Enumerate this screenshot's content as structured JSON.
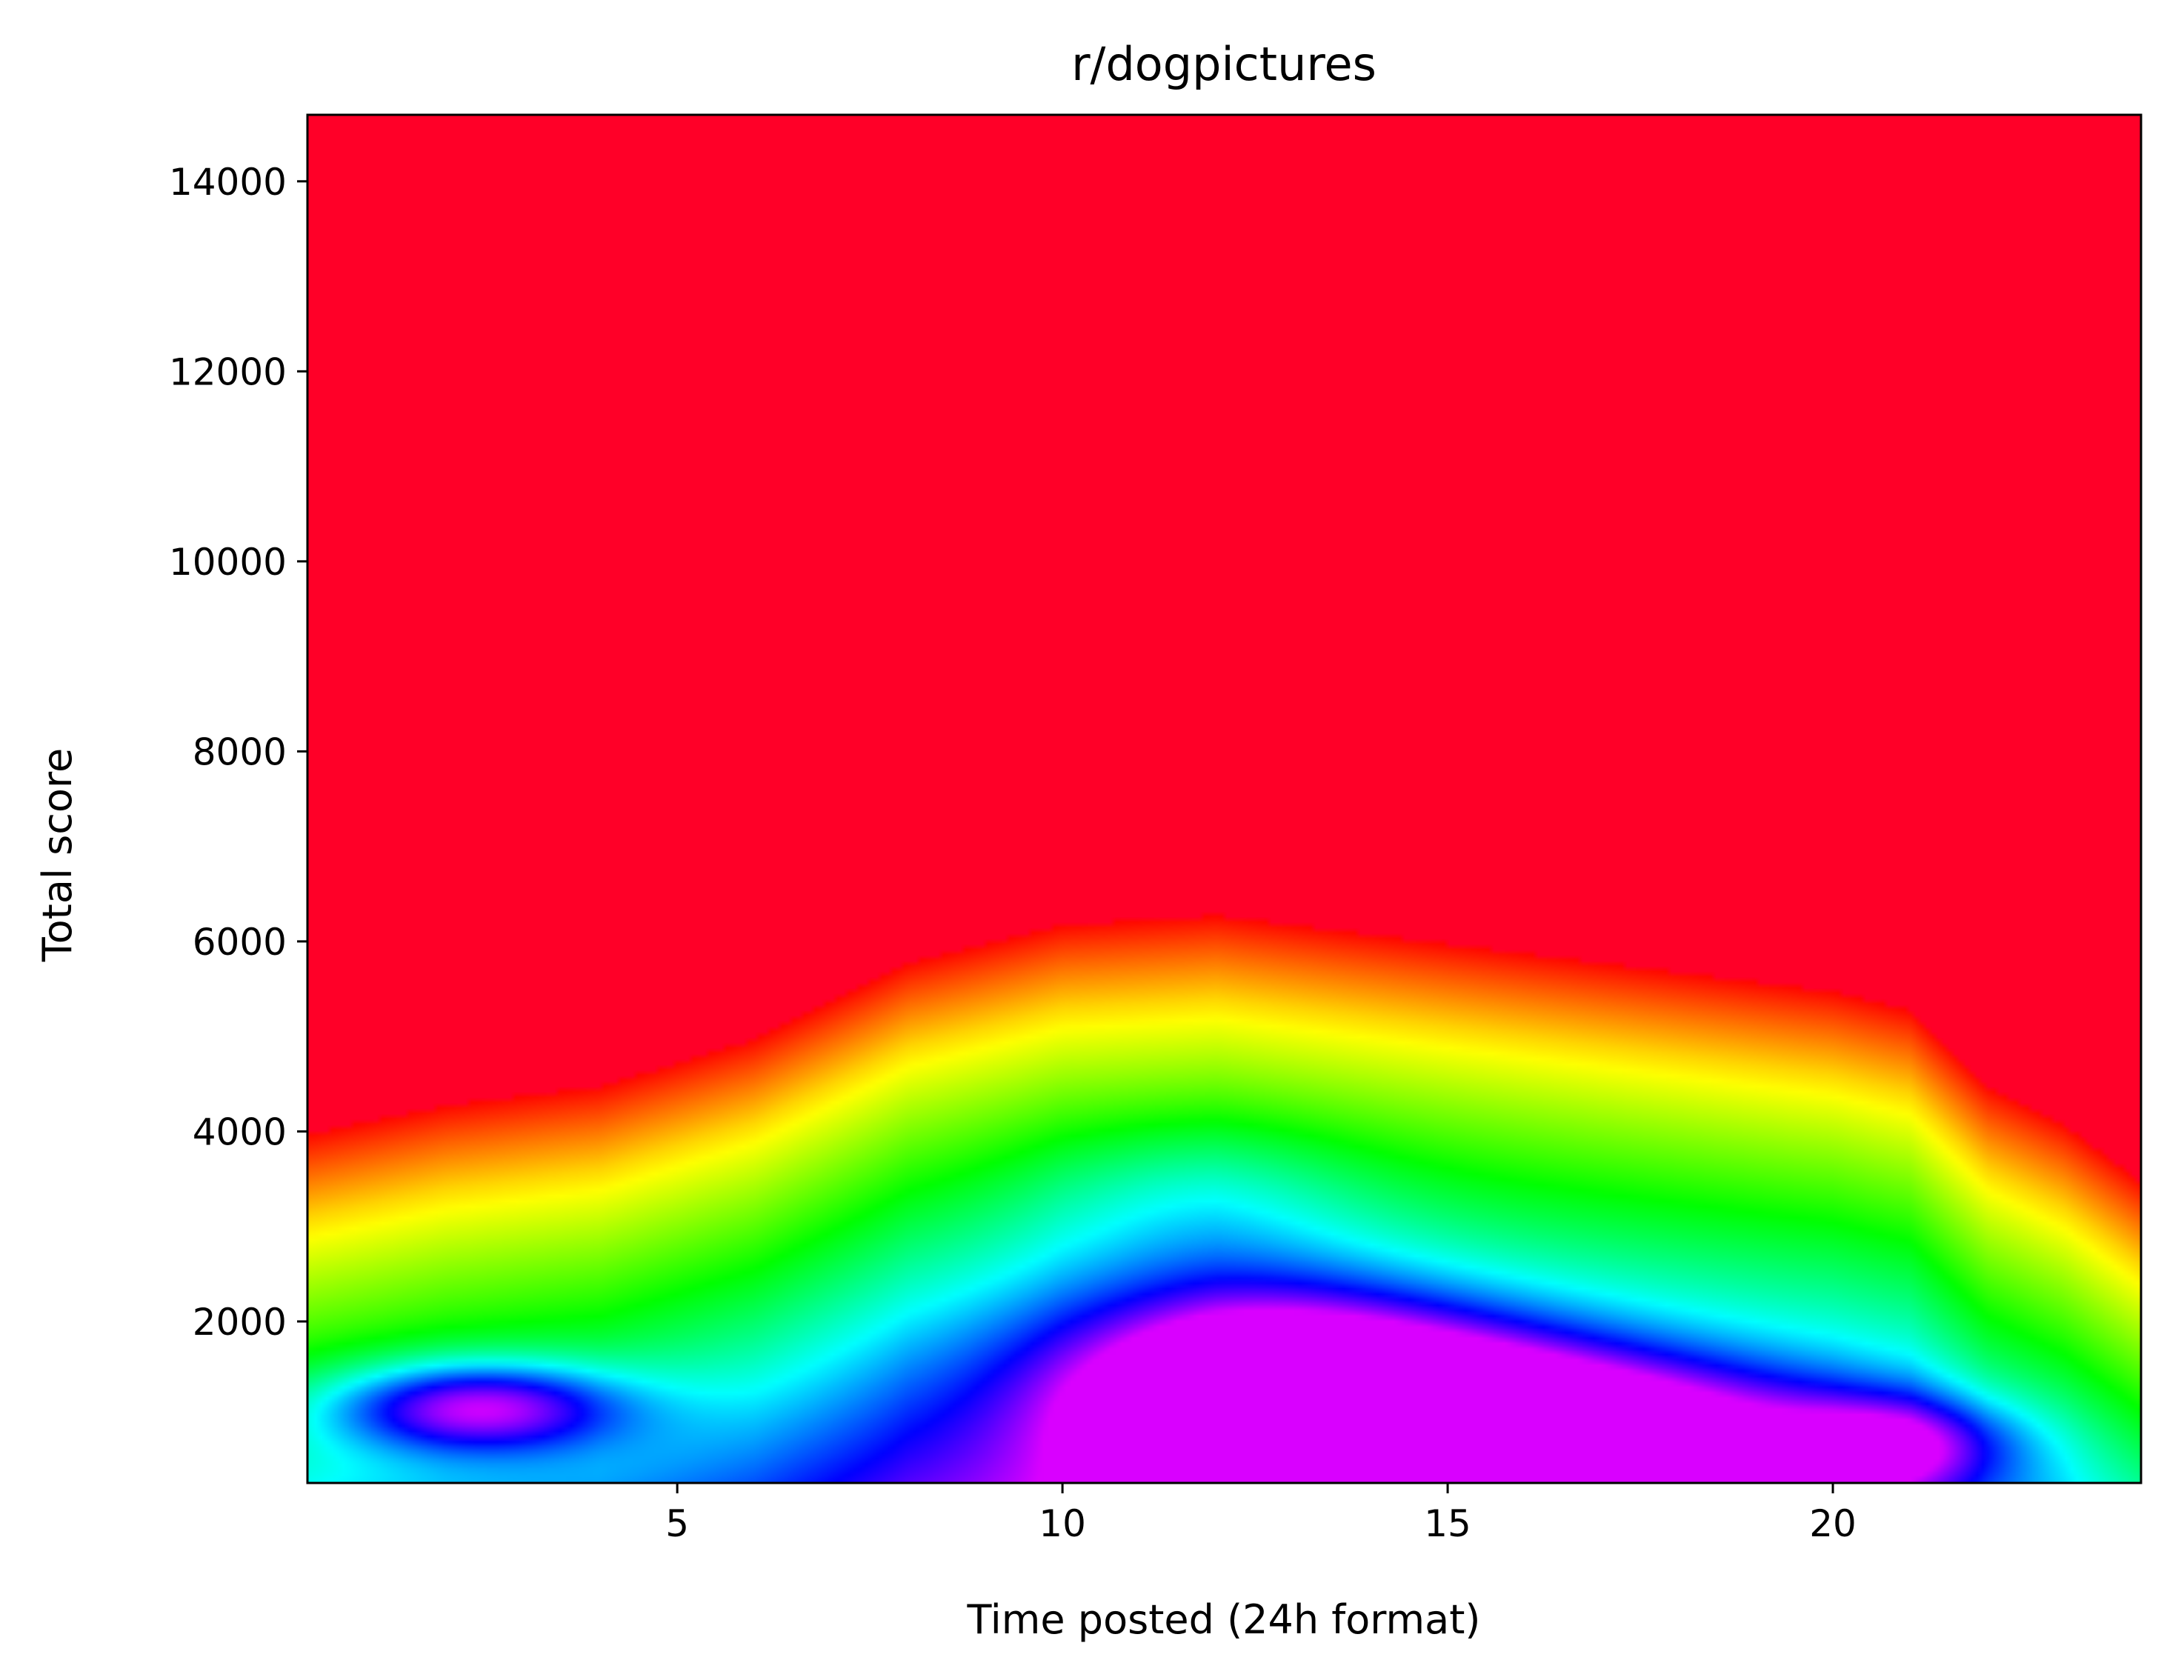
{
  "chart_data": {
    "type": "heatmap",
    "title": "r/dogpictures",
    "xlabel": "Time posted (24h format)",
    "ylabel": "Total score",
    "xlim": [
      0.2,
      24
    ],
    "ylim": [
      300,
      14700
    ],
    "xticks": [
      5,
      10,
      15,
      20
    ],
    "yticks": [
      2000,
      4000,
      6000,
      8000,
      10000,
      12000,
      14000
    ],
    "colormap": "gist_rainbow",
    "colormap_range": "high density = magenta/blue, low density = red",
    "grid": false,
    "legend": "none",
    "density_peaks": [
      {
        "x": 14.5,
        "y": 900,
        "level": "highest"
      },
      {
        "x": 12.5,
        "y": 1500,
        "level": "high"
      },
      {
        "x": 20.5,
        "y": 700,
        "level": "high"
      },
      {
        "x": 2.5,
        "y": 1100,
        "level": "medium"
      },
      {
        "x": 12.0,
        "y": 3800,
        "level": "low"
      }
    ],
    "contour_yellow_boundary": {
      "x": [
        0.2,
        2,
        4,
        6,
        8,
        10,
        12,
        14,
        16,
        18,
        20,
        21,
        22,
        23,
        24
      ],
      "y": [
        3100,
        3400,
        3600,
        4100,
        4900,
        5300,
        5400,
        5200,
        5000,
        4800,
        4600,
        4400,
        3600,
        3200,
        2600
      ]
    }
  }
}
